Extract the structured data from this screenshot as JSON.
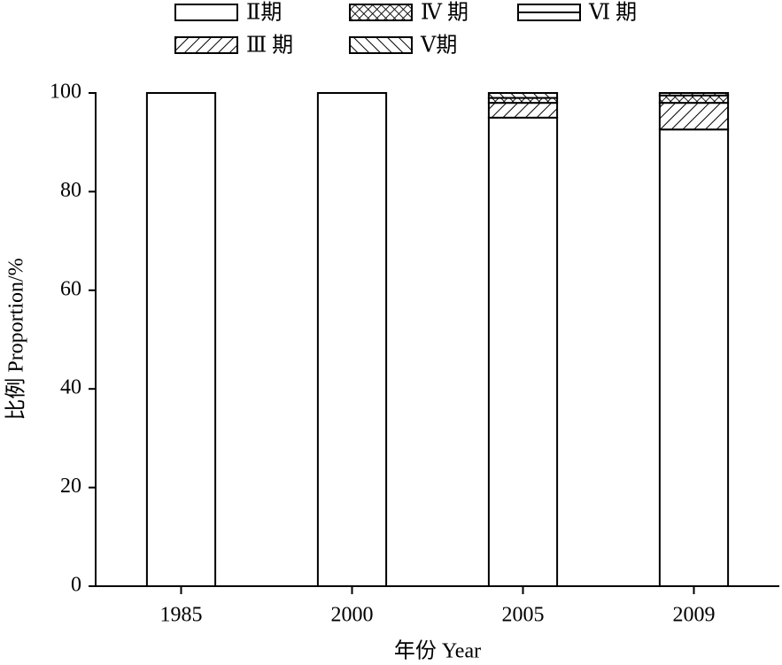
{
  "chart_data": {
    "type": "stacked_bar",
    "x_label": "年份 Year",
    "y_label": "比例 Proportion/%",
    "categories": [
      "1985",
      "2000",
      "2005",
      "2009"
    ],
    "series": [
      {
        "name": "Ⅱ期",
        "color": "#ffffff",
        "pattern": "none",
        "values": [
          100,
          100,
          95,
          92.6
        ]
      },
      {
        "name": "Ⅲ 期",
        "color": "#ffffff",
        "pattern": "forward",
        "values": [
          0,
          0,
          3,
          5.4
        ]
      },
      {
        "name": "Ⅳ 期",
        "color": "#ffffff",
        "pattern": "cross",
        "values": [
          0,
          0,
          1,
          1.5
        ]
      },
      {
        "name": "Ⅴ期",
        "color": "#ffffff",
        "pattern": "back",
        "values": [
          0,
          0,
          1,
          0.5
        ]
      },
      {
        "name": "Ⅵ 期",
        "color": "#ffffff",
        "pattern": "hline",
        "values": [
          0,
          0,
          0,
          0
        ]
      }
    ],
    "ylim": [
      0,
      100
    ],
    "yticks": [
      0,
      20,
      40,
      60,
      80,
      100
    ],
    "legend": "top"
  }
}
